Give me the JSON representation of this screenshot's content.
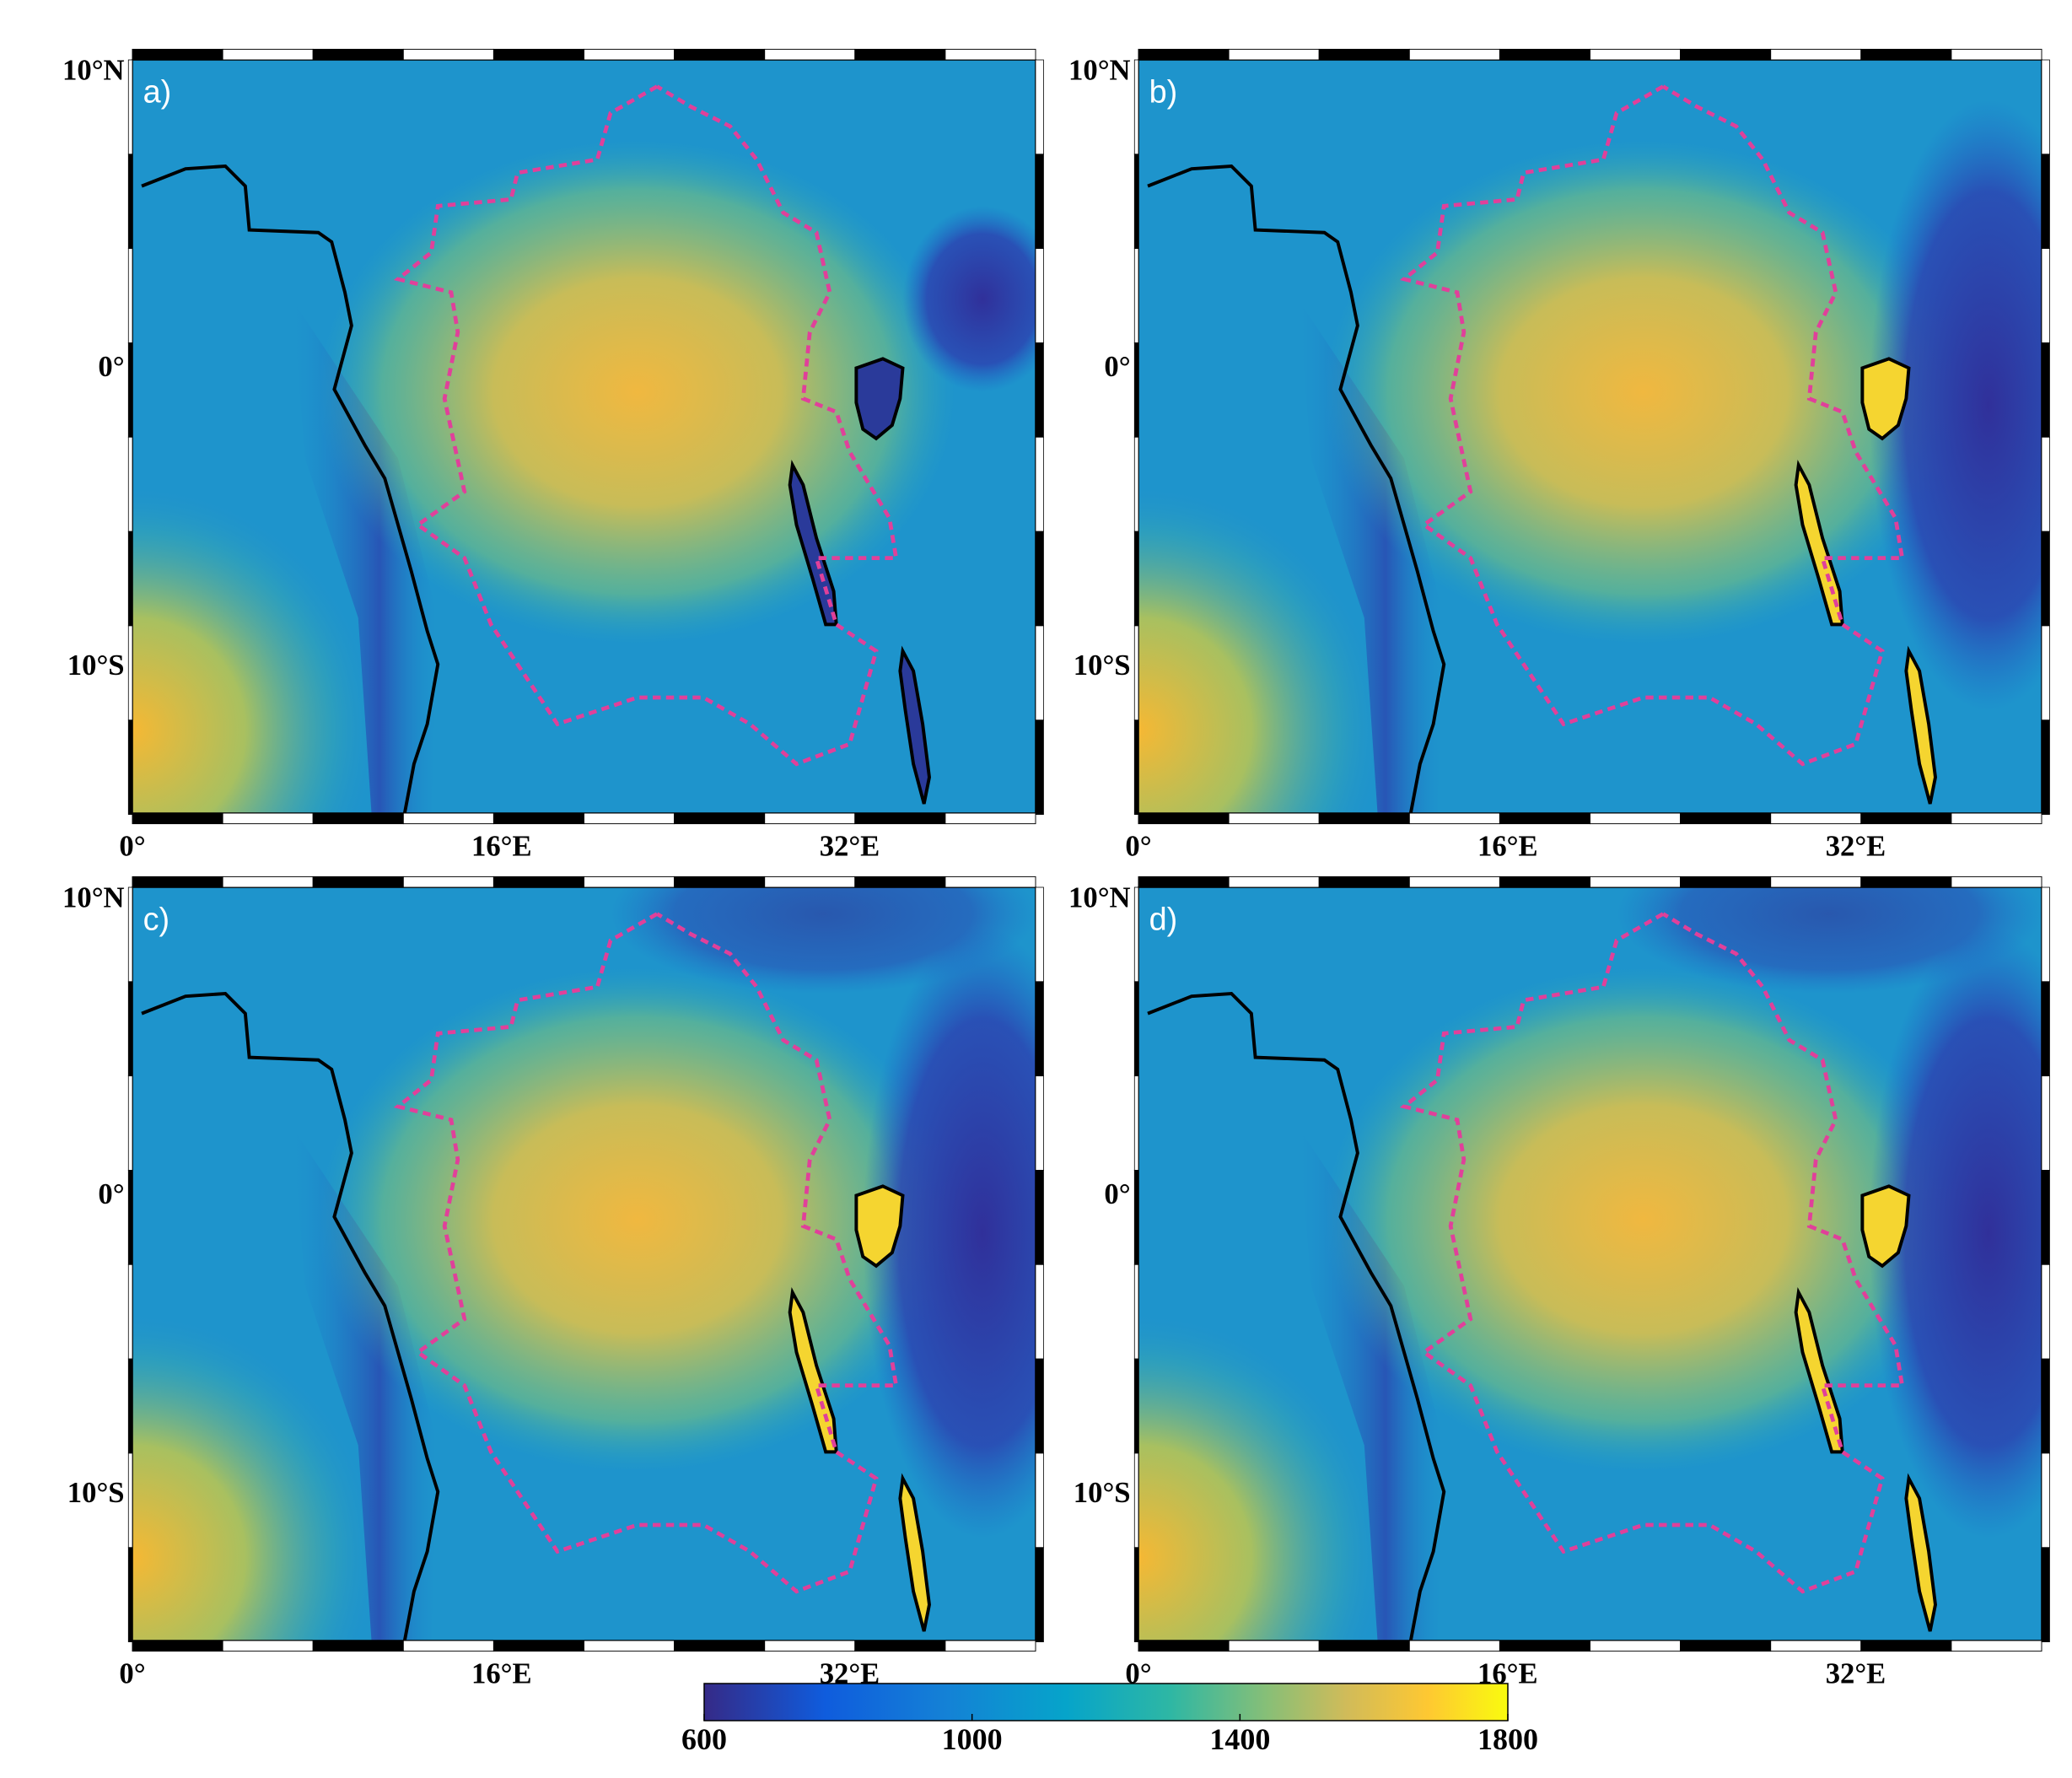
{
  "panels": [
    {
      "label": "a)"
    },
    {
      "label": "b)"
    },
    {
      "label": "c)"
    },
    {
      "label": "d)"
    }
  ],
  "lat_labels": [
    "10°N",
    "0°",
    "10°S"
  ],
  "lon_labels": [
    "0°",
    "16°E",
    "32°E"
  ],
  "colorbar": {
    "lim": [
      600,
      1800
    ],
    "ticks": [
      600,
      1000,
      1400,
      1800
    ]
  }
}
